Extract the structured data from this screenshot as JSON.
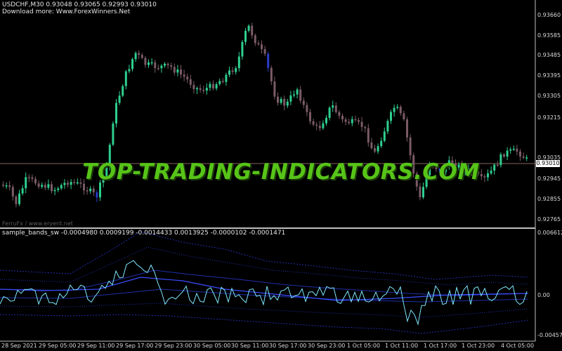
{
  "header": {
    "symbol_line": "USDCHF,M30  0.93048 0.93065 0.92993 0.93010",
    "download_line": "Download more: Www.ForexWinners.Net"
  },
  "price_axis": {
    "labels": [
      "0.93660",
      "0.93585",
      "0.93485",
      "0.93395",
      "0.93305",
      "0.93215",
      "0.93035",
      "0.92945",
      "0.92855",
      "0.92765"
    ],
    "current_price": "0.93010"
  },
  "indicator": {
    "title": "sample_bands_sw -0.0004980 0.0009199 -0.0014433 0.0013925 -0.0000102 -0.0001471",
    "axis_labels": [
      "0.0066121",
      "0.00",
      "-0.0045772"
    ]
  },
  "time_axis": {
    "labels": [
      "28 Sep 2021",
      "29 Sep 05:00",
      "29 Sep 11:00",
      "29 Sep 17:00",
      "29 Sep 23:00",
      "30 Sep 05:00",
      "30 Sep 11:00",
      "30 Sep 17:00",
      "30 Sep 23:00",
      "1 Oct 05:00",
      "1 Oct 11:00",
      "1 Oct 17:00",
      "1 Oct 23:00",
      "4 Oct 05:00"
    ]
  },
  "watermark": "TOP-TRADING-INDICATORS.COM",
  "footer_mark": "FerruFx / www.eryent.net",
  "colors": {
    "bull": "#2ecf8e",
    "bear": "#7a5a66",
    "accent_candle": "#2a3cc8",
    "band": "#1f2fa8",
    "signal": "#7fe8ff",
    "watermark": "#57c418",
    "grid_line": "#8a6060"
  }
}
